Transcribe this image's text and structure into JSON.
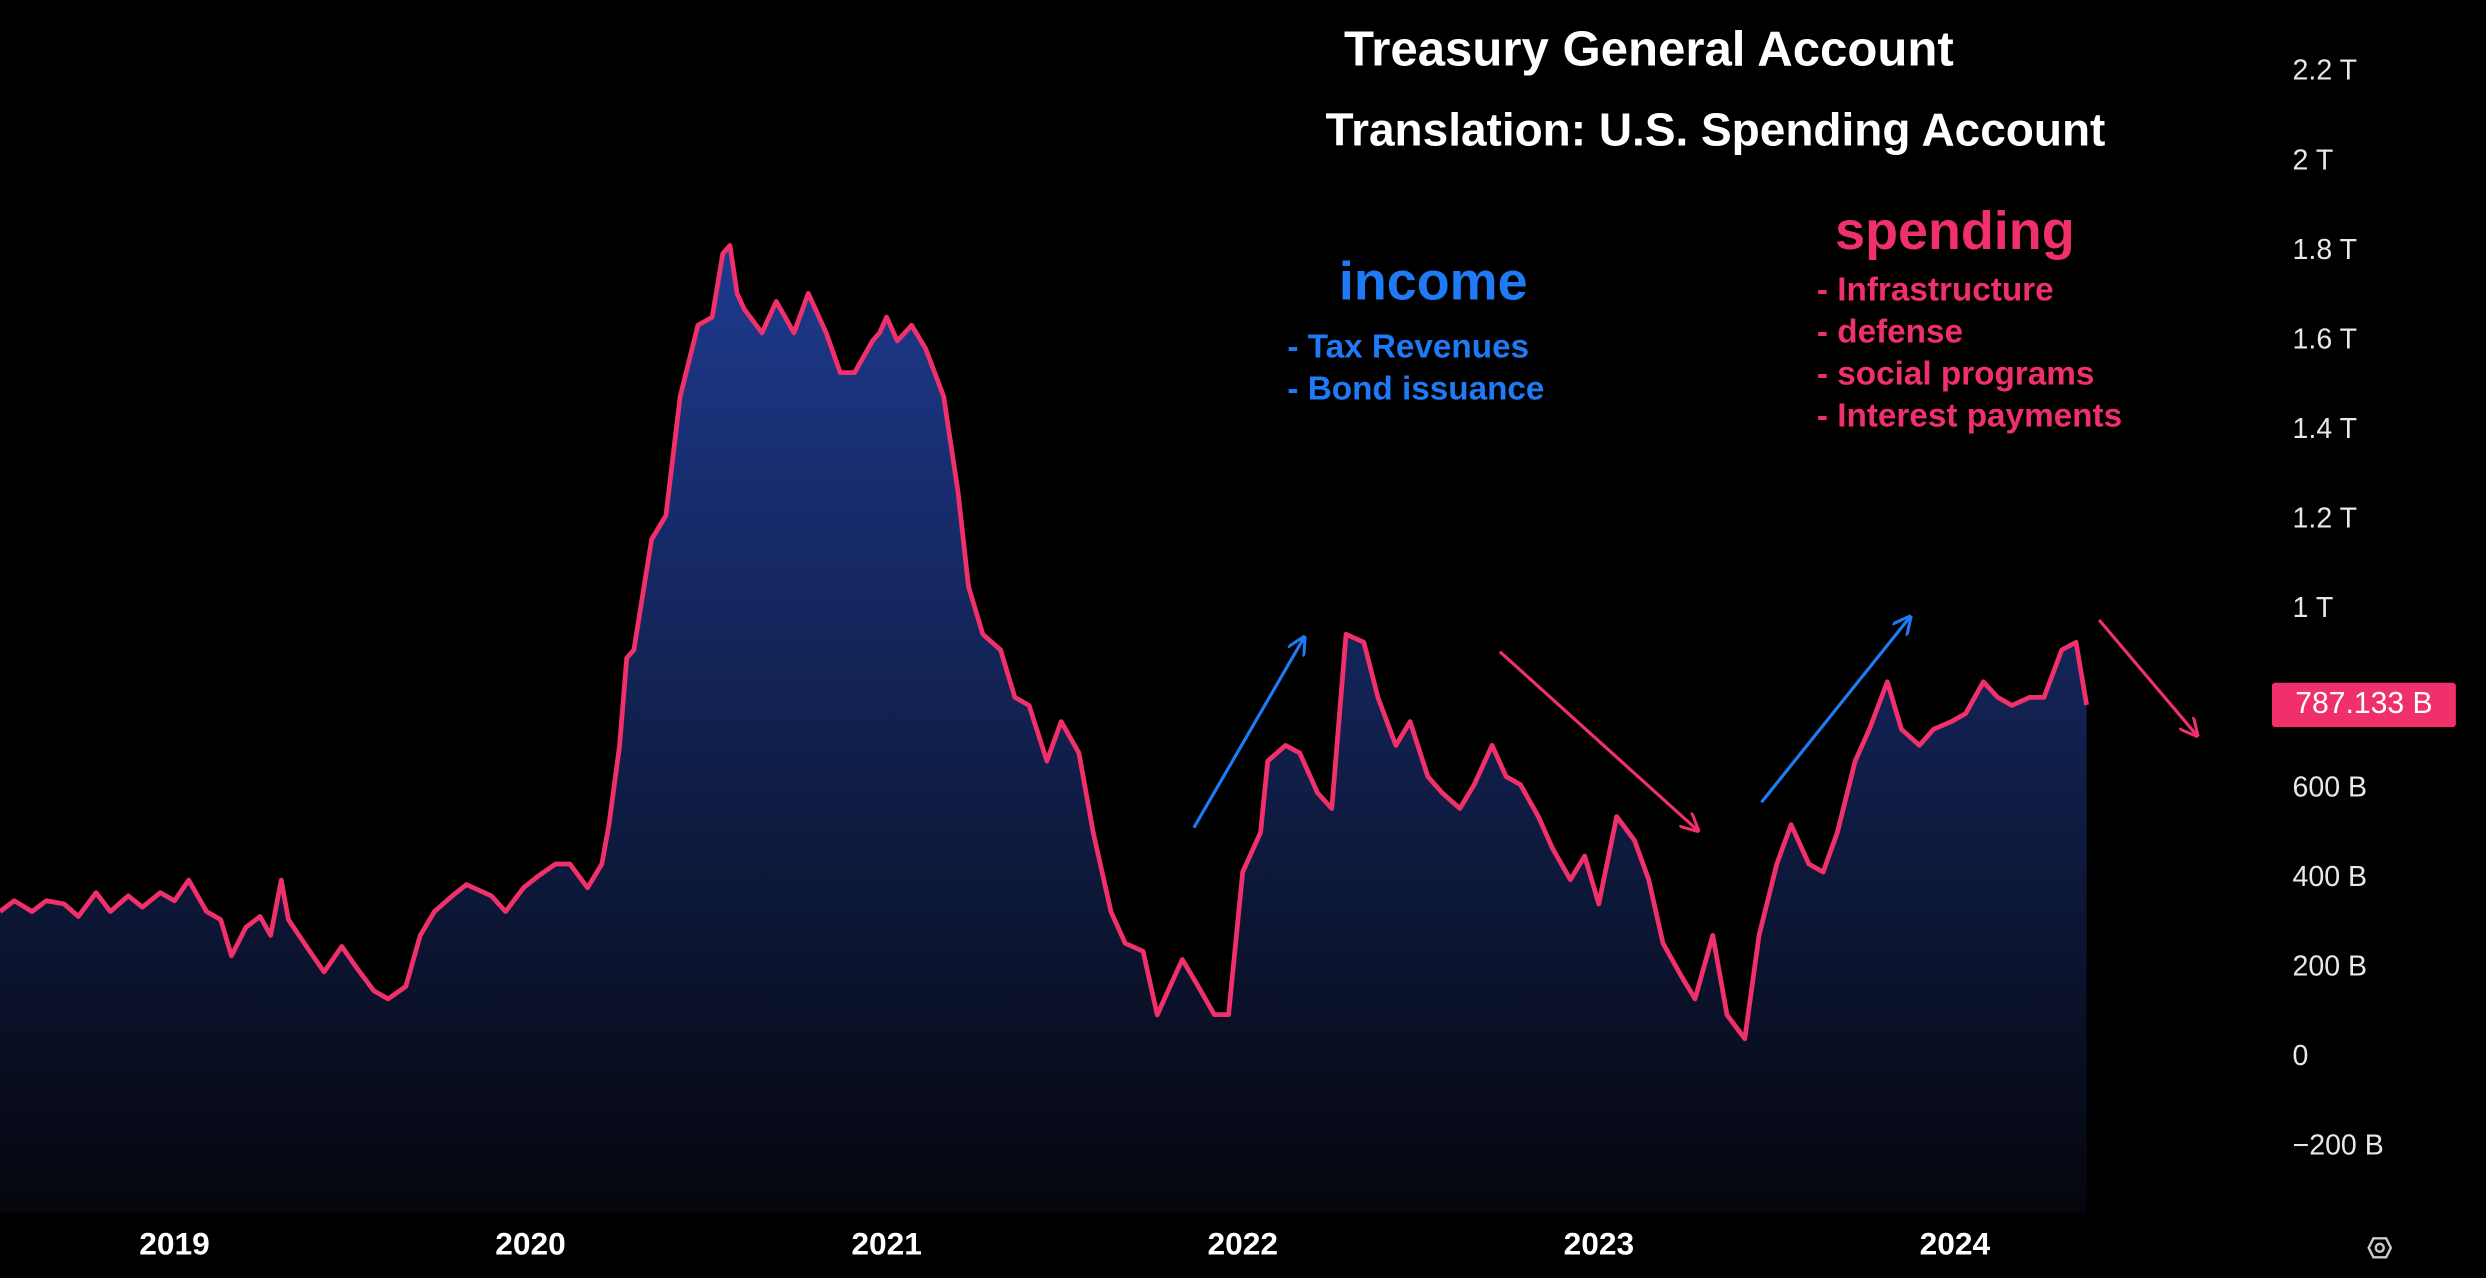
{
  "chart_data": {
    "type": "area",
    "title": "Treasury General Account",
    "subtitle": "Translation: U.S. Spending Account",
    "annotations": {
      "income": {
        "heading": "income",
        "items": [
          "- Tax Revenues",
          "- Bond issuance"
        ],
        "color": "#1f7af5"
      },
      "spending": {
        "heading": "spending",
        "items": [
          "- Infrastructure",
          "- defense",
          "- social programs",
          "- Interest payments"
        ],
        "color": "#f0306a"
      }
    },
    "line_color": "#f0306a",
    "fill_top": "#1d3a8e",
    "fill_bottom": "#05060d",
    "last_value_label": "787.133 B",
    "x": [
      2018.51,
      2018.55,
      2018.6,
      2018.64,
      2018.69,
      2018.73,
      2018.78,
      2018.82,
      2018.87,
      2018.91,
      2018.96,
      2019.0,
      2019.04,
      2019.09,
      2019.13,
      2019.16,
      2019.2,
      2019.24,
      2019.27,
      2019.3,
      2019.32,
      2019.38,
      2019.42,
      2019.47,
      2019.51,
      2019.56,
      2019.6,
      2019.65,
      2019.69,
      2019.73,
      2019.78,
      2019.82,
      2019.89,
      2019.93,
      2019.98,
      2020.02,
      2020.07,
      2020.11,
      2020.16,
      2020.2,
      2020.22,
      2020.25,
      2020.27,
      2020.29,
      2020.34,
      2020.38,
      2020.42,
      2020.47,
      2020.51,
      2020.54,
      2020.56,
      2020.58,
      2020.6,
      2020.65,
      2020.69,
      2020.74,
      2020.78,
      2020.83,
      2020.87,
      2020.91,
      2020.96,
      2020.98,
      2021.0,
      2021.03,
      2021.07,
      2021.11,
      2021.16,
      2021.2,
      2021.23,
      2021.27,
      2021.32,
      2021.36,
      2021.4,
      2021.45,
      2021.49,
      2021.54,
      2021.58,
      2021.63,
      2021.67,
      2021.72,
      2021.76,
      2021.8,
      2021.83,
      2021.87,
      2021.92,
      2021.96,
      2022.0,
      2022.05,
      2022.07,
      2022.12,
      2022.16,
      2022.21,
      2022.25,
      2022.29,
      2022.34,
      2022.38,
      2022.43,
      2022.47,
      2022.52,
      2022.56,
      2022.61,
      2022.65,
      2022.7,
      2022.74,
      2022.78,
      2022.83,
      2022.87,
      2022.92,
      2022.96,
      2023.0,
      2023.05,
      2023.1,
      2023.14,
      2023.18,
      2023.23,
      2023.27,
      2023.32,
      2023.36,
      2023.41,
      2023.45,
      2023.5,
      2023.54,
      2023.59,
      2023.63,
      2023.67,
      2023.72,
      2023.76,
      2023.81,
      2023.85,
      2023.9,
      2023.94,
      2023.99,
      2024.03,
      2024.08,
      2024.12,
      2024.16,
      2024.21,
      2024.25,
      2024.3,
      2024.34,
      2024.37
    ],
    "values": [
      326,
      350,
      326,
      350,
      343,
      315,
      368,
      326,
      361,
      336,
      368,
      350,
      396,
      326,
      308,
      227,
      290,
      315,
      273,
      396,
      308,
      237,
      191,
      248,
      202,
      149,
      131,
      159,
      272,
      326,
      361,
      386,
      361,
      326,
      379,
      404,
      432,
      432,
      379,
      432,
      520,
      697,
      892,
      910,
      1157,
      1210,
      1476,
      1635,
      1653,
      1795,
      1813,
      1706,
      1671,
      1618,
      1688,
      1618,
      1706,
      1618,
      1529,
      1529,
      1600,
      1618,
      1653,
      1600,
      1635,
      1582,
      1476,
      1264,
      1051,
      945,
      910,
      804,
      786,
      662,
      750,
      680,
      503,
      326,
      255,
      237,
      95,
      166,
      219,
      166,
      96,
      96,
      414,
      503,
      662,
      697,
      680,
      591,
      556,
      945,
      927,
      803,
      697,
      750,
      627,
      591,
      556,
      609,
      697,
      627,
      609,
      538,
      467,
      397,
      450,
      343,
      538,
      485,
      397,
      255,
      184,
      131,
      273,
      95,
      42,
      273,
      432,
      520,
      432,
      414,
      503,
      662,
      733,
      839,
      733,
      697,
      733,
      750,
      768,
      839,
      804,
      786,
      804,
      804,
      910,
      927,
      787.133
    ],
    "xlim": [
      2018.51,
      2024.877
    ],
    "xticks": [
      2019,
      2020,
      2021,
      2022,
      2023,
      2024
    ],
    "ylim": [
      -347,
      2361
    ],
    "yticks": [
      {
        "value": -200,
        "label": "−200 B"
      },
      0,
      {
        "value": 200,
        "label": "200 B"
      },
      {
        "value": 400,
        "label": "400 B"
      },
      {
        "value": 600,
        "label": "600 B"
      },
      {
        "value": 1000,
        "label": "1 T"
      },
      {
        "value": 1200,
        "label": "1.2 T"
      },
      {
        "value": 1400,
        "label": "1.4 T"
      },
      {
        "value": 1600,
        "label": "1.6 T"
      },
      {
        "value": 1800,
        "label": "1.8 T"
      },
      {
        "value": 2000,
        "label": "2 T"
      },
      {
        "value": 2200,
        "label": "2.2 T"
      }
    ]
  }
}
